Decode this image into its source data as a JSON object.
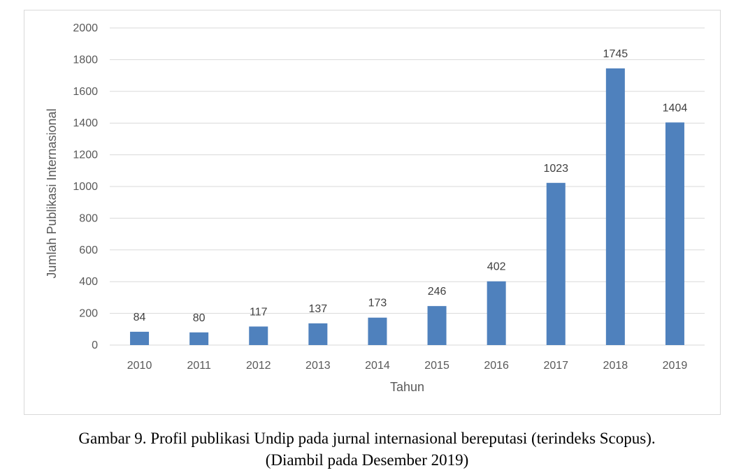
{
  "chart_data": {
    "type": "bar",
    "categories": [
      "2010",
      "2011",
      "2012",
      "2013",
      "2014",
      "2015",
      "2016",
      "2017",
      "2018",
      "2019"
    ],
    "values": [
      84,
      80,
      117,
      137,
      173,
      246,
      402,
      1023,
      1745,
      1404
    ],
    "xlabel": "Tahun",
    "ylabel": "Jumlah Publikasi Internasional",
    "ylim": [
      0,
      2000
    ],
    "yticks": [
      0,
      200,
      400,
      600,
      800,
      1000,
      1200,
      1400,
      1600,
      1800,
      2000
    ],
    "grid": true,
    "data_labels": true,
    "bar_color": "#4f81bd"
  },
  "caption": {
    "line1": "Gambar 9. Profil publikasi Undip pada jurnal internasional bereputasi (terindeks Scopus).",
    "line2": "(Diambil pada Desember 2019)"
  }
}
